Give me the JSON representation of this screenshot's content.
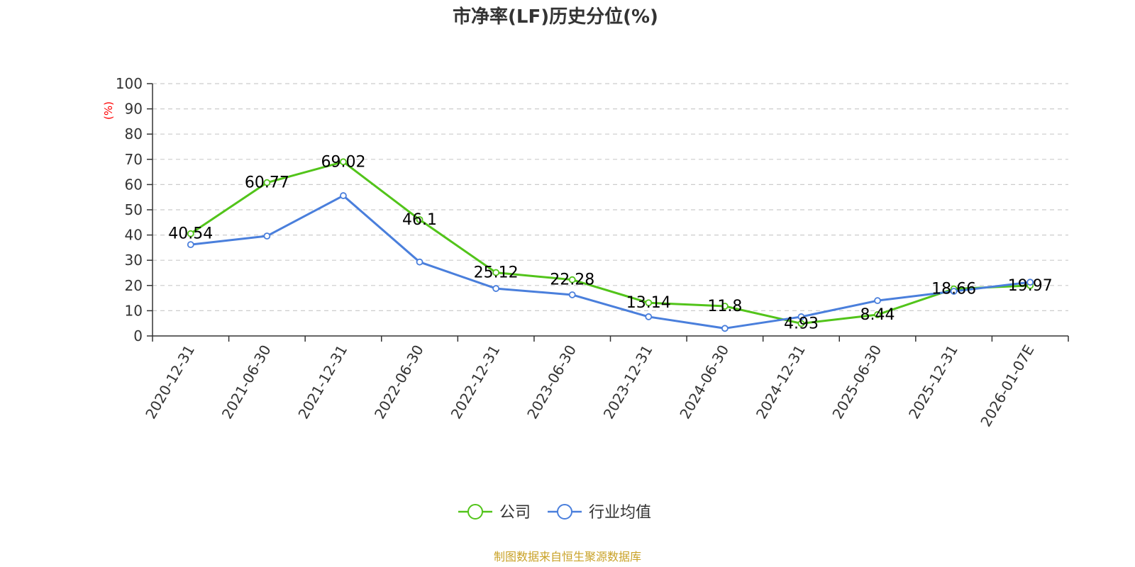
{
  "chart_data": {
    "type": "line",
    "title": "市净率(LF)历史分位(%)",
    "ylabel": "(%)",
    "xlabel": "",
    "ylim": [
      0,
      100
    ],
    "yticks": [
      "0",
      "10",
      "20",
      "30",
      "40",
      "50",
      "60",
      "70",
      "80",
      "90",
      "100"
    ],
    "categories": [
      "2020-12-31",
      "2021-06-30",
      "2021-12-31",
      "2022-06-30",
      "2022-12-31",
      "2023-06-30",
      "2023-12-31",
      "2024-06-30",
      "2024-12-31",
      "2025-06-30",
      "2025-12-31",
      "2026-01-07E"
    ],
    "series": [
      {
        "name": "公司",
        "color": "#52c41a",
        "values": [
          40.54,
          60.77,
          69.02,
          46.1,
          25.12,
          22.28,
          13.14,
          11.8,
          4.93,
          8.44,
          18.66,
          19.97
        ],
        "labels": [
          "40.54",
          "60.77",
          "69.02",
          "46.1",
          "25.12",
          "22.28",
          "13.14",
          "11.8",
          "4.93",
          "8.44",
          "18.66",
          "19.97"
        ]
      },
      {
        "name": "行业均值",
        "color": "#4a7fdc",
        "values": [
          36.2,
          39.6,
          55.6,
          29.3,
          18.8,
          16.3,
          7.6,
          3.0,
          7.6,
          14.0,
          17.7,
          21.3
        ]
      }
    ],
    "grid": true,
    "legend_position": "bottom-center",
    "unit_color": "#ff0000"
  },
  "source": {
    "text": "制图数据来自恒生聚源数据库",
    "color": "#c9a227"
  }
}
